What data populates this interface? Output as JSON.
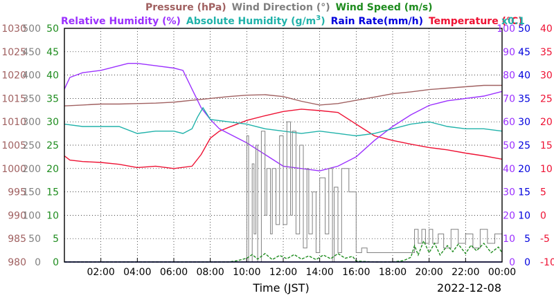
{
  "chart_data": {
    "type": "line",
    "date": "2022-12-08",
    "xlabel": "Time (JST)",
    "x_range_hours": [
      0,
      24
    ],
    "x_ticks": [
      "02:00",
      "04:00",
      "06:00",
      "08:00",
      "10:00",
      "12:00",
      "14:00",
      "16:00",
      "18:00",
      "20:00",
      "22:00",
      "00:00"
    ],
    "grid": true,
    "legend": {
      "row1": [
        {
          "key": "pressure",
          "label": "Pressure (hPa)",
          "color": "#a06060"
        },
        {
          "key": "wind_dir",
          "label": "Wind Direction (°)",
          "color": "#808080"
        },
        {
          "key": "wind_speed",
          "label": "Wind Speed (m/s)",
          "color": "#1e8c1e"
        }
      ],
      "row2": [
        {
          "key": "rh",
          "label": "Relative Humidity (%)",
          "color": "#9b30ff"
        },
        {
          "key": "ah",
          "label": "Absolute Humidity (g/m",
          "sup": "3",
          "close": ")",
          "color": "#20b2aa"
        },
        {
          "key": "rain",
          "label": "Rain Rate(mm/h)",
          "color": "#0000dd"
        },
        {
          "key": "temp",
          "label": "Temperature (°C)",
          "color": "#ee1133"
        }
      ],
      "ah_scale_note": "x0.1"
    },
    "axes": {
      "pressure": {
        "min": 980,
        "max": 1030,
        "ticks": [
          980,
          985,
          990,
          995,
          1000,
          1005,
          1010,
          1015,
          1020,
          1025,
          1030
        ],
        "color": "#a06060"
      },
      "wind_dir": {
        "min": 0,
        "max": 500,
        "ticks": [
          0,
          50,
          100,
          150,
          200,
          250,
          300,
          350,
          400,
          450,
          500
        ],
        "color": "#808080"
      },
      "wind_speed": {
        "min": 0,
        "max": 50,
        "ticks": [
          0,
          5,
          10,
          15,
          20,
          25,
          30,
          35,
          40,
          45,
          50
        ],
        "color": "#1e8c1e"
      },
      "rh": {
        "min": 0,
        "max": 100,
        "ticks": [
          0,
          10,
          20,
          30,
          40,
          50,
          60,
          70,
          80,
          90,
          100
        ],
        "color": "#9b30ff"
      },
      "rain": {
        "min": 0,
        "max": 50,
        "ticks": [
          0,
          5,
          10,
          15,
          20,
          25,
          30,
          35,
          40,
          45,
          50
        ],
        "color": "#0000dd"
      },
      "temp": {
        "min": -10,
        "max": 40,
        "ticks": [
          -10,
          -5,
          0,
          5,
          10,
          15,
          20,
          25,
          30,
          35,
          40
        ],
        "color": "#ee1133"
      }
    },
    "series": [
      {
        "key": "pressure",
        "name": "Pressure (hPa)",
        "axis": "pressure",
        "color": "#a06060",
        "x": [
          0,
          1,
          2,
          3,
          4,
          5,
          6,
          7,
          8,
          9,
          10,
          11,
          12,
          13,
          14,
          15,
          16,
          17,
          18,
          19,
          20,
          21,
          22,
          23,
          24
        ],
        "y": [
          1013.4,
          1013.6,
          1013.8,
          1013.8,
          1013.9,
          1014.0,
          1014.2,
          1014.6,
          1015.0,
          1015.4,
          1015.7,
          1015.8,
          1015.4,
          1014.4,
          1013.6,
          1013.9,
          1014.6,
          1015.3,
          1016.0,
          1016.4,
          1016.9,
          1017.2,
          1017.5,
          1017.8,
          1017.8
        ]
      },
      {
        "key": "temp",
        "name": "Temperature (°C)",
        "axis": "temp",
        "color": "#ee1133",
        "x": [
          0,
          0.3,
          1,
          2,
          3,
          4,
          5,
          6,
          7,
          7.5,
          8,
          8.5,
          9,
          10,
          11,
          12,
          13,
          14,
          15,
          16,
          17,
          18,
          19,
          20,
          21,
          22,
          23,
          24
        ],
        "y": [
          12.7,
          11.8,
          11.5,
          11.3,
          10.9,
          10.2,
          10.5,
          10.0,
          10.5,
          13.0,
          16.5,
          18.0,
          18.8,
          20.3,
          21.3,
          22.2,
          22.7,
          22.4,
          22.0,
          19.5,
          17.0,
          16.0,
          15.2,
          14.5,
          14.0,
          13.3,
          12.7,
          12.0
        ]
      },
      {
        "key": "rh",
        "name": "Relative Humidity (%)",
        "axis": "rh",
        "color": "#9b30ff",
        "x": [
          0,
          0.3,
          1,
          2,
          3,
          3.5,
          4,
          5,
          6,
          6.5,
          7,
          7.5,
          8,
          8.5,
          9,
          10,
          11,
          12,
          13,
          14,
          14.5,
          15,
          16,
          17,
          18,
          19,
          20,
          21,
          22,
          23,
          24
        ],
        "y": [
          74,
          79,
          81,
          82,
          84,
          85,
          85,
          84,
          83,
          82,
          74,
          66,
          61,
          57,
          55,
          51,
          46,
          41,
          40,
          39,
          40,
          41,
          45,
          52,
          58,
          63,
          67,
          69,
          70,
          71,
          73
        ]
      },
      {
        "key": "ah",
        "name": "Absolute Humidity (g/m3)",
        "axis": "rh",
        "color": "#20b2aa",
        "x": [
          0,
          1,
          2,
          3,
          4,
          5,
          6,
          6.5,
          7,
          7.3,
          7.6,
          8,
          9,
          10,
          11,
          12,
          13,
          14,
          15,
          16,
          17,
          18,
          19,
          20,
          21,
          22,
          23,
          24
        ],
        "y": [
          59,
          58,
          58,
          58,
          55,
          56,
          56,
          55,
          57,
          62,
          66,
          61,
          60,
          59,
          57,
          56,
          55,
          56,
          55,
          54,
          55,
          57,
          59,
          60,
          58,
          57,
          57,
          56
        ]
      },
      {
        "key": "wind_dir",
        "name": "Wind Direction (°)",
        "axis": "wind_dir",
        "color": "#808080",
        "step": true,
        "x": [
          9.9,
          10.0,
          10.1,
          10.3,
          10.4,
          10.5,
          10.6,
          10.8,
          11.0,
          11.1,
          11.3,
          11.4,
          11.6,
          11.8,
          12.0,
          12.2,
          12.4,
          12.5,
          12.7,
          12.9,
          13.1,
          13.3,
          13.4,
          13.6,
          13.8,
          14.0,
          14.3,
          14.5,
          14.7,
          14.8,
          15.0,
          15.2,
          15.6,
          16.0,
          16.3,
          16.6,
          17.0,
          17.5,
          18.0,
          18.5,
          19.0,
          19.2,
          19.4,
          19.6,
          19.8,
          20.0,
          20.2,
          20.5,
          20.8,
          21.2,
          21.6,
          22.0,
          22.4,
          22.8,
          23.2,
          23.6,
          24.0
        ],
        "y": [
          0,
          270,
          0,
          210,
          60,
          250,
          0,
          280,
          100,
          200,
          60,
          200,
          80,
          270,
          80,
          300,
          100,
          280,
          60,
          250,
          30,
          200,
          60,
          150,
          20,
          180,
          60,
          200,
          0,
          160,
          20,
          200,
          150,
          20,
          30,
          20,
          20,
          20,
          20,
          20,
          20,
          70,
          40,
          70,
          40,
          70,
          40,
          60,
          30,
          70,
          40,
          60,
          30,
          70,
          40,
          60,
          40
        ]
      },
      {
        "key": "wind_speed",
        "name": "Wind Speed (m/s)",
        "axis": "wind_speed",
        "color": "#1e8c1e",
        "dashed": true,
        "x": [
          0,
          1,
          2,
          3,
          4,
          5,
          6,
          7,
          8,
          9,
          9.5,
          10,
          10.3,
          10.6,
          11,
          11.4,
          11.8,
          12.2,
          12.6,
          13,
          13.4,
          13.8,
          14.2,
          14.6,
          15,
          15.4,
          15.8,
          16,
          17,
          18,
          18.6,
          19,
          19.2,
          19.4,
          19.7,
          20,
          20.3,
          20.6,
          21,
          21.3,
          21.6,
          22,
          22.3,
          22.6,
          23,
          23.4,
          23.8,
          24
        ],
        "y": [
          0,
          0,
          0,
          0,
          0,
          0,
          0,
          0,
          0,
          0,
          0.3,
          0.8,
          1.6,
          0.6,
          1.8,
          0.5,
          1.4,
          0.7,
          1.6,
          0.6,
          1.3,
          0.5,
          1.5,
          0.7,
          1.8,
          0.8,
          1.2,
          0.2,
          0,
          0,
          0.3,
          1.0,
          3.5,
          1.5,
          4.5,
          2.0,
          4.0,
          1.5,
          3.5,
          2.2,
          3.8,
          1.8,
          3.6,
          2.4,
          4.0,
          2.0,
          3.2,
          2.0
        ]
      },
      {
        "key": "rain",
        "name": "Rain Rate(mm/h)",
        "axis": "rain",
        "color": "#0000dd",
        "x": [
          0,
          24
        ],
        "y": [
          0,
          0
        ]
      }
    ]
  }
}
